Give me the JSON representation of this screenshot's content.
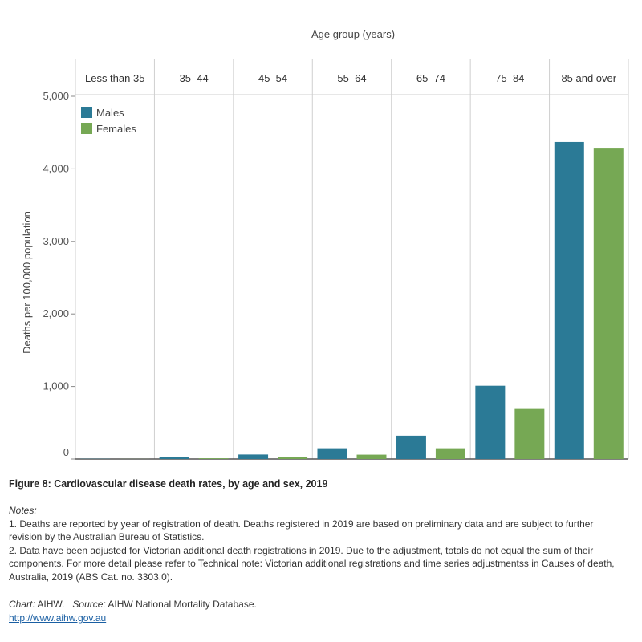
{
  "chart_data": {
    "type": "bar",
    "title": "Figure 8: Cardiovascular disease death rates, by age and sex, 2019",
    "column_header_title": "Age group (years)",
    "categories": [
      "Less than 35",
      "35–44",
      "45–54",
      "55–64",
      "65–74",
      "75–84",
      "85 and over"
    ],
    "series": [
      {
        "name": "Males",
        "color": "#2b7a96",
        "values": [
          3,
          25,
          62,
          148,
          322,
          1010,
          4370
        ]
      },
      {
        "name": "Females",
        "color": "#76a854",
        "values": [
          1,
          10,
          27,
          60,
          148,
          690,
          4280
        ]
      }
    ],
    "ylabel": "Deaths per 100,000 population",
    "xlabel": "",
    "ylim": [
      0,
      5000
    ],
    "yticks": [
      0,
      1000,
      2000,
      3000,
      4000,
      5000
    ],
    "ytick_labels": [
      "0",
      "1,000",
      "2,000",
      "3,000",
      "4,000",
      "5,000"
    ],
    "legend_position": "top-left"
  },
  "notes": {
    "heading": "Notes:",
    "items": [
      "1. Deaths are reported by year of registration of death. Deaths registered in 2019 are based on preliminary data and are subject to further revision by the Australian Bureau of Statistics.",
      "2. Data have been adjusted for Victorian additional death registrations in 2019. Due to the adjustment, totals do not equal the sum of their components. For more detail please refer to Technical note: Victorian additional registrations and time series adjustmentss in Causes of death, Australia, 2019 (ABS Cat. no. 3303.0)."
    ]
  },
  "credits": {
    "chart_label": "Chart:",
    "chart_value": "AIHW.",
    "source_label": "Source:",
    "source_value": "AIHW National Mortality Database.",
    "url": "http://www.aihw.gov.au"
  }
}
